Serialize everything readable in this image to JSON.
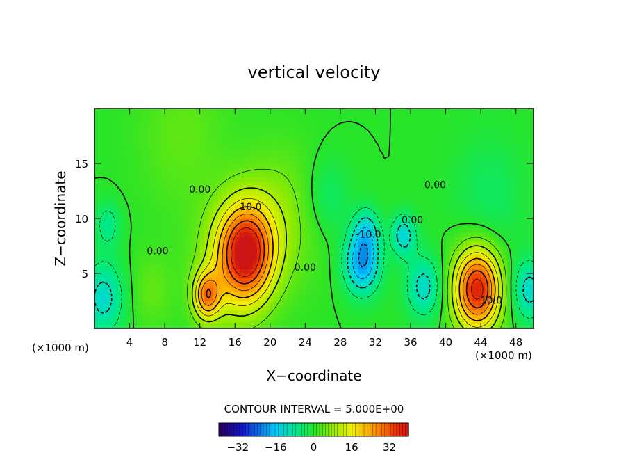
{
  "chart_data": {
    "type": "heatmap",
    "title": "vertical velocity",
    "xlabel": "X−coordinate",
    "ylabel": "Z−coordinate",
    "x_unit_left": "(×1000 m)",
    "x_unit_right": "(×1000 m)",
    "xlim": [
      0,
      50
    ],
    "ylim": [
      0,
      20
    ],
    "x_ticks": [
      4,
      8,
      12,
      16,
      20,
      24,
      28,
      32,
      36,
      40,
      44,
      48
    ],
    "y_ticks": [
      5,
      10,
      15
    ],
    "contour_interval_text": "CONTOUR INTERVAL = 5.000E+00",
    "contour_labels": [
      {
        "text": "0.00",
        "x": 12.0,
        "y": 12.6
      },
      {
        "text": "10.0",
        "x": 17.8,
        "y": 11.0
      },
      {
        "text": "0.00",
        "x": 7.2,
        "y": 7.0
      },
      {
        "text": "0.00",
        "x": 24.0,
        "y": 5.5
      },
      {
        "text": "-10.0",
        "x": 31.2,
        "y": 8.5
      },
      {
        "text": "0.00",
        "x": 36.2,
        "y": 9.8
      },
      {
        "text": "0.00",
        "x": 38.8,
        "y": 13.0
      },
      {
        "text": "10.0",
        "x": 45.2,
        "y": 2.5
      }
    ],
    "colorbar": {
      "min": -40,
      "max": 40,
      "ticks": [
        -32,
        -16,
        0,
        16,
        32
      ],
      "tick_labels": [
        "−32",
        "−16",
        "0",
        "16",
        "32"
      ]
    },
    "features": [
      {
        "x": 17.3,
        "y": 7.0,
        "w": 3.0,
        "peak": 34
      },
      {
        "x": 12.8,
        "y": 3.0,
        "w": 1.5,
        "peak": 24
      },
      {
        "x": 15.5,
        "y": 5.5,
        "w": 4.0,
        "peak": 10
      },
      {
        "x": 43.6,
        "y": 3.6,
        "w": 2.6,
        "peak": 38
      },
      {
        "x": 21.0,
        "y": 10.0,
        "w": 4.5,
        "peak": 7
      },
      {
        "x": 30.5,
        "y": 6.0,
        "w": 2.0,
        "peak": -20
      },
      {
        "x": 31.0,
        "y": 9.0,
        "w": 1.5,
        "peak": -10
      },
      {
        "x": 35.2,
        "y": 8.5,
        "w": 1.4,
        "peak": -13
      },
      {
        "x": 37.5,
        "y": 3.8,
        "w": 2.0,
        "peak": -12
      },
      {
        "x": 49.5,
        "y": 3.5,
        "w": 2.0,
        "peak": -12
      },
      {
        "x": 1.0,
        "y": 2.8,
        "w": 2.4,
        "peak": -12
      },
      {
        "x": 1.5,
        "y": 9.5,
        "w": 1.5,
        "peak": -7
      },
      {
        "x": 26.5,
        "y": 12.0,
        "w": 2.5,
        "peak": -5
      },
      {
        "x": 10.0,
        "y": 17.5,
        "w": 5.0,
        "peak": 4
      },
      {
        "x": 45.0,
        "y": 12.0,
        "w": 4.0,
        "peak": -4
      },
      {
        "x": 6.5,
        "y": 3.5,
        "w": 2.5,
        "peak": 4
      }
    ]
  }
}
